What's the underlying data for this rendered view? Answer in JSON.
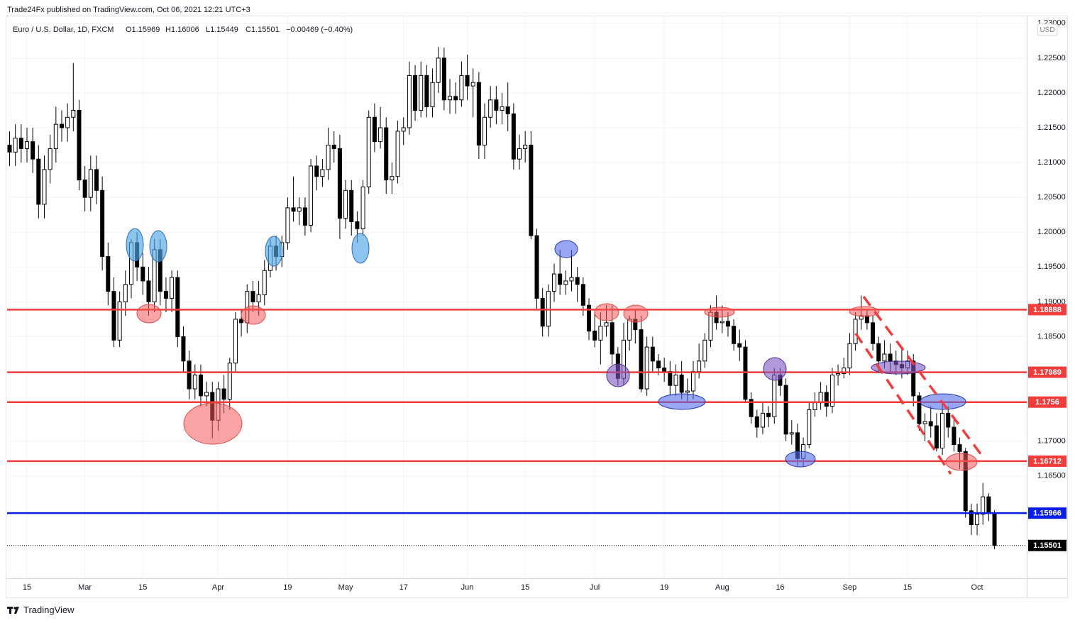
{
  "chart_data": {
    "type": "candlestick",
    "header": "Trade24Fx published on TradingView.com, Oct 06, 2021 12:21 UTC+3",
    "symbol": "Euro / U.S. Dollar, 1D, FXCM",
    "ohlc_legend": [
      "O1.15969",
      "H1.16006",
      "L1.15449",
      "C1.15501"
    ],
    "change": "−0.00469 (−0.40%)",
    "currency": "USD",
    "brand": "TradingView",
    "up_color": "#ffffff",
    "down_color": "#000000",
    "categories": [
      null,
      null,
      null,
      "15",
      null,
      null,
      null,
      null,
      null,
      null,
      null,
      null,
      null,
      "Mar",
      null,
      null,
      null,
      null,
      null,
      null,
      null,
      null,
      null,
      "15",
      null,
      null,
      null,
      null,
      null,
      null,
      null,
      null,
      null,
      null,
      null,
      null,
      "Apr",
      null,
      null,
      null,
      null,
      null,
      null,
      null,
      null,
      null,
      null,
      null,
      "19",
      null,
      null,
      null,
      null,
      null,
      null,
      null,
      null,
      null,
      "May",
      null,
      null,
      null,
      null,
      null,
      null,
      null,
      null,
      null,
      "17",
      null,
      null,
      null,
      null,
      null,
      null,
      null,
      null,
      null,
      null,
      "Jun",
      null,
      null,
      null,
      null,
      null,
      null,
      null,
      null,
      null,
      "15",
      null,
      null,
      null,
      null,
      null,
      null,
      null,
      null,
      null,
      null,
      null,
      "Jul",
      null,
      null,
      null,
      null,
      null,
      null,
      null,
      null,
      null,
      null,
      null,
      "19",
      null,
      null,
      null,
      null,
      null,
      null,
      null,
      null,
      null,
      "Aug",
      null,
      null,
      null,
      null,
      null,
      null,
      null,
      null,
      null,
      "16",
      null,
      null,
      null,
      null,
      null,
      null,
      null,
      null,
      null,
      null,
      null,
      "Sep",
      null,
      null,
      null,
      null,
      null,
      null,
      null,
      null,
      null,
      "15",
      null,
      null,
      null,
      null,
      null,
      null,
      null,
      null,
      null,
      null,
      null,
      "Oct",
      null,
      null,
      null
    ],
    "open": [
      1.2125,
      1.2115,
      1.2135,
      1.212,
      1.213,
      1.2105,
      1.204,
      1.209,
      1.212,
      1.2155,
      1.215,
      1.2165,
      1.2175,
      1.2075,
      1.205,
      1.209,
      1.206,
      1.1965,
      1.1915,
      1.1845,
      1.19,
      1.1925,
      1.1985,
      1.195,
      1.193,
      1.19,
      1.1975,
      1.1915,
      1.1905,
      1.1935,
      1.185,
      1.1815,
      1.1775,
      1.1795,
      1.1765,
      1.177,
      1.173,
      1.1775,
      1.176,
      1.1812,
      1.1875,
      1.187,
      1.1915,
      1.19,
      1.191,
      1.1945,
      1.198,
      1.1965,
      1.1985,
      1.2035,
      1.203,
      1.2035,
      1.201,
      1.2095,
      1.208,
      1.209,
      1.2125,
      1.212,
      1.202,
      1.206,
      1.2015,
      1.2005,
      1.2065,
      1.2165,
      1.213,
      1.215,
      1.2075,
      1.208,
      1.2145,
      1.215,
      1.2225,
      1.2175,
      1.2225,
      1.218,
      1.2215,
      1.225,
      1.219,
      1.2195,
      1.219,
      1.2225,
      1.221,
      1.2215,
      1.2125,
      1.2165,
      1.219,
      1.2175,
      1.218,
      1.217,
      1.2105,
      1.212,
      1.2125,
      1.1995,
      1.1905,
      1.1865,
      1.1915,
      1.194,
      1.1925,
      1.193,
      1.1935,
      1.1925,
      1.1895,
      1.1858,
      1.1845,
      1.1865,
      1.187,
      1.1825,
      1.179,
      1.1845,
      1.1875,
      1.186,
      1.1775,
      1.1835,
      1.1815,
      1.1805,
      1.18,
      1.178,
      1.1795,
      1.177,
      1.1772,
      1.18,
      1.1815,
      1.1845,
      1.1885,
      1.187,
      1.1872,
      1.1865,
      1.184,
      1.1835,
      1.176,
      1.1735,
      1.172,
      1.174,
      1.1735,
      1.1795,
      1.178,
      1.171,
      1.1712,
      1.1675,
      1.1695,
      1.1745,
      1.1755,
      1.177,
      1.175,
      1.1795,
      1.1797,
      1.1805,
      1.184,
      1.1875,
      1.188,
      1.187,
      1.184,
      1.1815,
      1.1825,
      1.1815,
      1.181,
      1.1805,
      1.1815,
      1.1765,
      1.1725,
      1.1728,
      1.1722,
      1.169,
      1.174,
      1.172,
      1.1695,
      1.1685,
      1.16,
      1.158,
      1.1595,
      1.162,
      1.15969
    ],
    "high": [
      1.2145,
      1.2155,
      1.2155,
      1.215,
      1.215,
      1.2125,
      1.211,
      1.214,
      1.218,
      1.2175,
      1.2185,
      1.2243,
      1.219,
      1.2095,
      1.211,
      1.211,
      1.208,
      1.1985,
      1.1935,
      1.1915,
      1.1945,
      1.199,
      1.2,
      1.197,
      1.195,
      1.199,
      1.199,
      1.1935,
      1.1945,
      1.1945,
      1.1865,
      1.183,
      1.181,
      1.181,
      1.1785,
      1.1785,
      1.1785,
      1.1795,
      1.182,
      1.1885,
      1.189,
      1.1925,
      1.193,
      1.193,
      1.196,
      1.199,
      1.1995,
      1.1995,
      1.205,
      1.208,
      1.205,
      1.205,
      1.2105,
      1.211,
      1.2105,
      1.215,
      1.2145,
      1.214,
      1.2075,
      1.2075,
      1.203,
      1.2075,
      1.2175,
      1.2185,
      1.218,
      1.2165,
      1.21,
      1.216,
      1.2165,
      1.2245,
      1.224,
      1.2245,
      1.224,
      1.2235,
      1.2266,
      1.2265,
      1.222,
      1.2215,
      1.2245,
      1.2255,
      1.2235,
      1.223,
      1.2185,
      1.221,
      1.221,
      1.22,
      1.2215,
      1.2185,
      1.214,
      1.2145,
      1.2145,
      1.2005,
      1.192,
      1.1925,
      1.1955,
      1.1975,
      1.1945,
      1.1975,
      1.195,
      1.1935,
      1.1905,
      1.1885,
      1.1885,
      1.1895,
      1.1895,
      1.1835,
      1.187,
      1.188,
      1.189,
      1.188,
      1.185,
      1.185,
      1.1825,
      1.182,
      1.1815,
      1.181,
      1.1815,
      1.179,
      1.1815,
      1.184,
      1.1855,
      1.1895,
      1.1909,
      1.1895,
      1.1885,
      1.1875,
      1.186,
      1.1845,
      1.177,
      1.1745,
      1.1755,
      1.175,
      1.1805,
      1.1805,
      1.179,
      1.173,
      1.1725,
      1.1705,
      1.1755,
      1.177,
      1.1785,
      1.178,
      1.1805,
      1.181,
      1.182,
      1.1855,
      1.1885,
      1.1909,
      1.189,
      1.188,
      1.185,
      1.1845,
      1.184,
      1.183,
      1.1835,
      1.183,
      1.1825,
      1.177,
      1.174,
      1.175,
      1.174,
      1.1755,
      1.175,
      1.1735,
      1.1705,
      1.169,
      1.161,
      1.161,
      1.164,
      1.1625,
      1.16006
    ],
    "low": [
      1.2095,
      1.2095,
      1.21,
      1.21,
      1.2085,
      1.202,
      1.202,
      1.207,
      1.21,
      1.213,
      1.213,
      1.2145,
      1.206,
      1.203,
      1.203,
      1.204,
      1.1945,
      1.1895,
      1.1835,
      1.1835,
      1.188,
      1.1905,
      1.193,
      1.191,
      1.188,
      1.1885,
      1.1895,
      1.1885,
      1.1885,
      1.1835,
      1.18,
      1.176,
      1.176,
      1.175,
      1.175,
      1.1704,
      1.1715,
      1.174,
      1.1745,
      1.18,
      1.185,
      1.1855,
      1.1885,
      1.188,
      1.1895,
      1.1935,
      1.1945,
      1.195,
      1.1975,
      1.2015,
      1.201,
      1.1995,
      1.2,
      1.206,
      1.2065,
      1.2075,
      1.21,
      1.199,
      1.2005,
      1.1995,
      1.1985,
      1.1995,
      1.2055,
      1.2115,
      1.212,
      1.2055,
      1.2055,
      1.207,
      1.2125,
      1.214,
      1.216,
      1.2165,
      1.2165,
      1.2165,
      1.22,
      1.2175,
      1.217,
      1.217,
      1.218,
      1.219,
      1.2165,
      1.2105,
      1.2105,
      1.215,
      1.2155,
      1.2155,
      1.2145,
      1.209,
      1.209,
      1.21,
      1.199,
      1.189,
      1.185,
      1.185,
      1.19,
      1.191,
      1.191,
      1.1915,
      1.19,
      1.188,
      1.1845,
      1.1835,
      1.181,
      1.185,
      1.181,
      1.178,
      1.178,
      1.183,
      1.184,
      1.177,
      1.1765,
      1.18,
      1.1795,
      1.1785,
      1.1765,
      1.1765,
      1.176,
      1.1755,
      1.176,
      1.179,
      1.1805,
      1.1835,
      1.186,
      1.1855,
      1.185,
      1.183,
      1.1815,
      1.1755,
      1.1725,
      1.1705,
      1.171,
      1.172,
      1.1725,
      1.1765,
      1.17,
      1.1695,
      1.1665,
      1.1664,
      1.169,
      1.1735,
      1.1745,
      1.1735,
      1.174,
      1.178,
      1.179,
      1.1795,
      1.183,
      1.186,
      1.186,
      1.183,
      1.18,
      1.1805,
      1.18,
      1.1795,
      1.179,
      1.1795,
      1.175,
      1.1715,
      1.17,
      1.1705,
      1.1685,
      1.168,
      1.1705,
      1.1685,
      1.166,
      1.159,
      1.1565,
      1.1565,
      1.158,
      1.1585,
      1.15449
    ],
    "close": [
      1.2115,
      1.2135,
      1.212,
      1.213,
      1.2105,
      1.204,
      1.209,
      1.212,
      1.2155,
      1.215,
      1.2165,
      1.2175,
      1.2075,
      1.205,
      1.209,
      1.206,
      1.1965,
      1.1915,
      1.1845,
      1.19,
      1.1925,
      1.1985,
      1.195,
      1.193,
      1.19,
      1.1975,
      1.1915,
      1.1905,
      1.1935,
      1.185,
      1.1815,
      1.1775,
      1.1795,
      1.1765,
      1.177,
      1.173,
      1.1775,
      1.176,
      1.1812,
      1.1875,
      1.187,
      1.1915,
      1.19,
      1.191,
      1.1945,
      1.198,
      1.1965,
      1.1985,
      1.2035,
      1.203,
      1.2035,
      1.201,
      1.2095,
      1.208,
      1.209,
      1.2125,
      1.212,
      1.202,
      1.206,
      1.2015,
      1.2005,
      1.2065,
      1.2165,
      1.213,
      1.215,
      1.2075,
      1.208,
      1.2145,
      1.215,
      1.2225,
      1.2175,
      1.2225,
      1.218,
      1.2215,
      1.225,
      1.219,
      1.2195,
      1.219,
      1.2225,
      1.221,
      1.2215,
      1.2125,
      1.2165,
      1.219,
      1.2175,
      1.218,
      1.217,
      1.2105,
      1.212,
      1.2125,
      1.1995,
      1.1905,
      1.1865,
      1.1915,
      1.194,
      1.1925,
      1.193,
      1.1935,
      1.1925,
      1.1895,
      1.1858,
      1.1845,
      1.1865,
      1.187,
      1.1825,
      1.179,
      1.1845,
      1.1875,
      1.186,
      1.1775,
      1.1835,
      1.1815,
      1.1805,
      1.18,
      1.178,
      1.1795,
      1.177,
      1.1772,
      1.18,
      1.1815,
      1.1845,
      1.1885,
      1.187,
      1.1872,
      1.1865,
      1.184,
      1.1835,
      1.176,
      1.1735,
      1.172,
      1.174,
      1.1735,
      1.1795,
      1.178,
      1.171,
      1.1712,
      1.1675,
      1.1695,
      1.1745,
      1.1755,
      1.177,
      1.175,
      1.1795,
      1.1797,
      1.1805,
      1.184,
      1.1875,
      1.188,
      1.187,
      1.184,
      1.1815,
      1.1825,
      1.1815,
      1.181,
      1.1805,
      1.1815,
      1.1765,
      1.1725,
      1.1728,
      1.1722,
      1.169,
      1.174,
      1.172,
      1.1695,
      1.1685,
      1.16,
      1.158,
      1.1595,
      1.162,
      1.15969,
      1.15501
    ],
    "levels": [
      {
        "value": 1.18888,
        "color": "#f23c3c"
      },
      {
        "value": 1.17989,
        "color": "#f23c3c"
      },
      {
        "value": 1.1756,
        "color": "#f23c3c"
      },
      {
        "value": 1.16712,
        "color": "#f23c3c"
      },
      {
        "value": 1.15966,
        "color": "#0a1ee6"
      }
    ],
    "last_price_color": "#000000",
    "ylim": [
      1.1503,
      1.2311
    ],
    "yticks": [
      {
        "value": 1.23,
        "label": "1.23000"
      },
      {
        "value": 1.225,
        "label": "1.22500"
      },
      {
        "value": 1.22,
        "label": "1.22000"
      },
      {
        "value": 1.215,
        "label": "1.21500"
      },
      {
        "value": 1.21,
        "label": "1.21000"
      },
      {
        "value": 1.205,
        "label": "1.20500"
      },
      {
        "value": 1.2,
        "label": "1.20000"
      },
      {
        "value": 1.195,
        "label": "1.19500"
      },
      {
        "value": 1.19,
        "label": "1.19000"
      },
      {
        "value": 1.185,
        "label": "1.18500"
      },
      {
        "value": 1.17,
        "label": "1.17000"
      },
      {
        "value": 1.165,
        "label": "1.16500"
      }
    ],
    "grid": true
  }
}
